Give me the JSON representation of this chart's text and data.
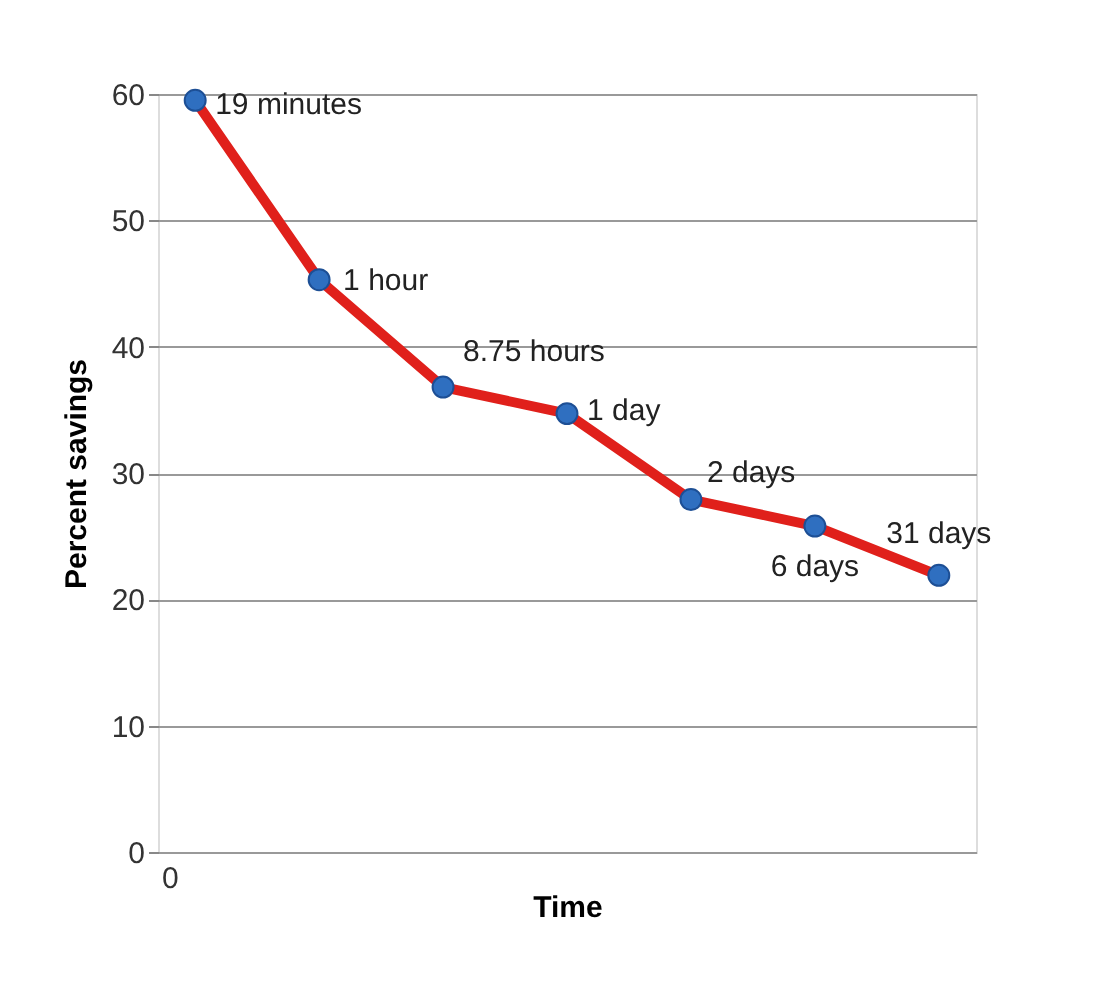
{
  "chart_data": {
    "type": "line",
    "xlabel": "Time",
    "ylabel": "Percent savings",
    "categories": [
      null,
      null,
      null,
      null,
      null,
      null,
      null
    ],
    "series": [
      {
        "color": "#e0201b",
        "colors": [
          "#2f6fc0",
          "#2f6fc0",
          "#2f6fc0",
          "#2f6fc0",
          "#2f6fc0",
          "#2f6fc0",
          "#2f6fc0"
        ],
        "values": [
          59.5,
          45.3,
          36.8,
          34.7,
          27.9,
          25.8,
          21.9
        ]
      }
    ],
    "marker": "circle",
    "line_style": "solid",
    "ylim": [
      0,
      60
    ],
    "yticks": [
      0,
      10,
      20,
      30,
      40,
      50,
      60
    ],
    "grid": "y",
    "annotations": [
      "19 minutes",
      "1 hour",
      "8.75 hours",
      "1 day",
      "2 days",
      "6 days",
      "31 days",
      "0"
    ]
  }
}
